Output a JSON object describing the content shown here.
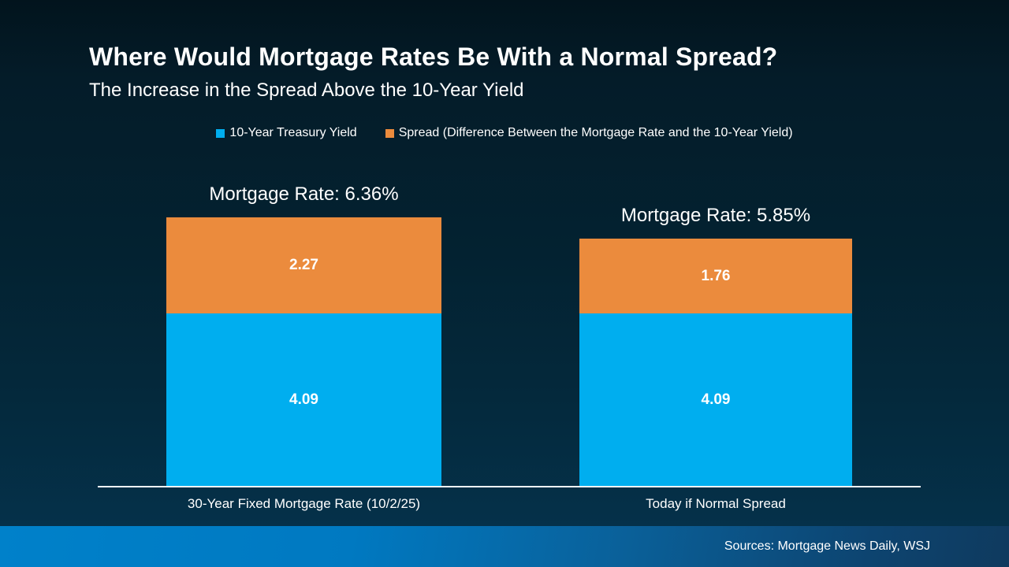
{
  "slide": {
    "title": "Where Would Mortgage Rates Be With a Normal Spread?",
    "subtitle": "The Increase in the Spread Above the 10-Year Yield",
    "source": "Sources: Mortgage News Daily, WSJ"
  },
  "legend": {
    "items": [
      {
        "label": "10-Year Treasury Yield",
        "color": "#00aeef"
      },
      {
        "label": "Spread (Difference Between the Mortgage Rate and the 10-Year Yield)",
        "color": "#eb8b3d"
      }
    ]
  },
  "chart_data": {
    "type": "bar",
    "stacked": true,
    "title": "Where Would Mortgage Rates Be With a Normal Spread?",
    "subtitle": "The Increase in the Spread Above the 10-Year Yield",
    "categories": [
      "30-Year Fixed Mortgage Rate (10/2/25)",
      "Today if Normal Spread"
    ],
    "series": [
      {
        "name": "10-Year Treasury Yield",
        "color": "#00aeef",
        "values": [
          4.09,
          4.09
        ]
      },
      {
        "name": "Spread (Difference Between the Mortgage Rate and the 10-Year Yield)",
        "color": "#eb8b3d",
        "values": [
          2.27,
          1.76
        ]
      }
    ],
    "totals": [
      "Mortgage Rate: 6.36%",
      "Mortgage Rate: 5.85%"
    ],
    "ylim": [
      0,
      6.5
    ],
    "grid": false,
    "legend_position": "top-center",
    "colors": {
      "background_top": "#02141d",
      "background_bottom": "#05314a",
      "axis_line": "#f2f6f8",
      "footer_left": "#0081ca",
      "footer_right": "#0f3a5e",
      "text": "#ffffff"
    }
  }
}
